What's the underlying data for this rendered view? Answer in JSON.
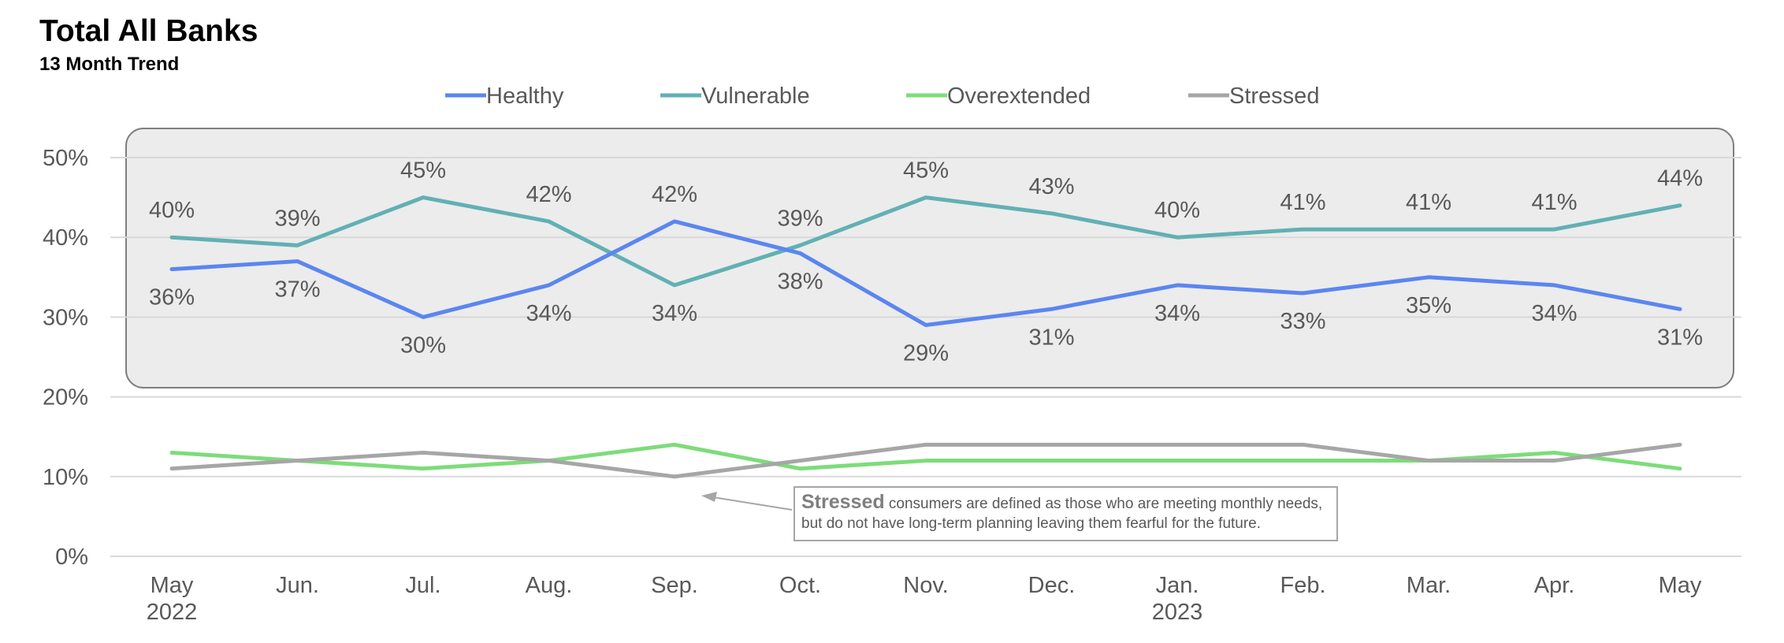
{
  "title": "Total All Banks",
  "subtitle": "13 Month Trend",
  "note": {
    "bold": "Stressed",
    "text": " consumers are defined as those who are meeting monthly needs, but do not have long-term planning leaving them fearful for the future."
  },
  "chart_data": {
    "type": "line",
    "categories": [
      "May",
      "Jun.",
      "Jul.",
      "Aug.",
      "Sep.",
      "Oct.",
      "Nov.",
      "Dec.",
      "Jan.",
      "Feb.",
      "Mar.",
      "Apr.",
      "May"
    ],
    "year_labels": [
      "2022",
      "",
      "",
      "",
      "",
      "",
      "",
      "",
      "2023",
      "",
      "",
      "",
      ""
    ],
    "y_ticks": [
      "0%",
      "10%",
      "20%",
      "30%",
      "40%",
      "50%"
    ],
    "ylim": [
      0,
      50
    ],
    "y_unit": "%",
    "grid": true,
    "legend_position": "top",
    "series": [
      {
        "name": "Healthy",
        "color": "#5b86f0",
        "values": [
          36,
          37,
          30,
          34,
          42,
          38,
          29,
          31,
          34,
          33,
          35,
          34,
          31
        ],
        "labels": [
          "36%",
          "37%",
          "30%",
          "34%",
          "42%",
          "38%",
          "29%",
          "31%",
          "34%",
          "33%",
          "35%",
          "34%",
          "31%"
        ]
      },
      {
        "name": "Vulnerable",
        "color": "#62b0b4",
        "values": [
          40,
          39,
          45,
          42,
          34,
          39,
          45,
          43,
          40,
          41,
          41,
          41,
          44
        ],
        "labels": [
          "40%",
          "39%",
          "45%",
          "42%",
          "34%",
          "39%",
          "45%",
          "43%",
          "40%",
          "41%",
          "41%",
          "41%",
          "44%"
        ]
      },
      {
        "name": "Overextended",
        "color": "#7ddc7a",
        "values": [
          13,
          12,
          11,
          12,
          14,
          11,
          12,
          12,
          12,
          12,
          12,
          13,
          11
        ]
      },
      {
        "name": "Stressed",
        "color": "#a6a6a6",
        "values": [
          11,
          12,
          13,
          12,
          10,
          12,
          14,
          14,
          14,
          14,
          12,
          12,
          14
        ]
      }
    ]
  }
}
